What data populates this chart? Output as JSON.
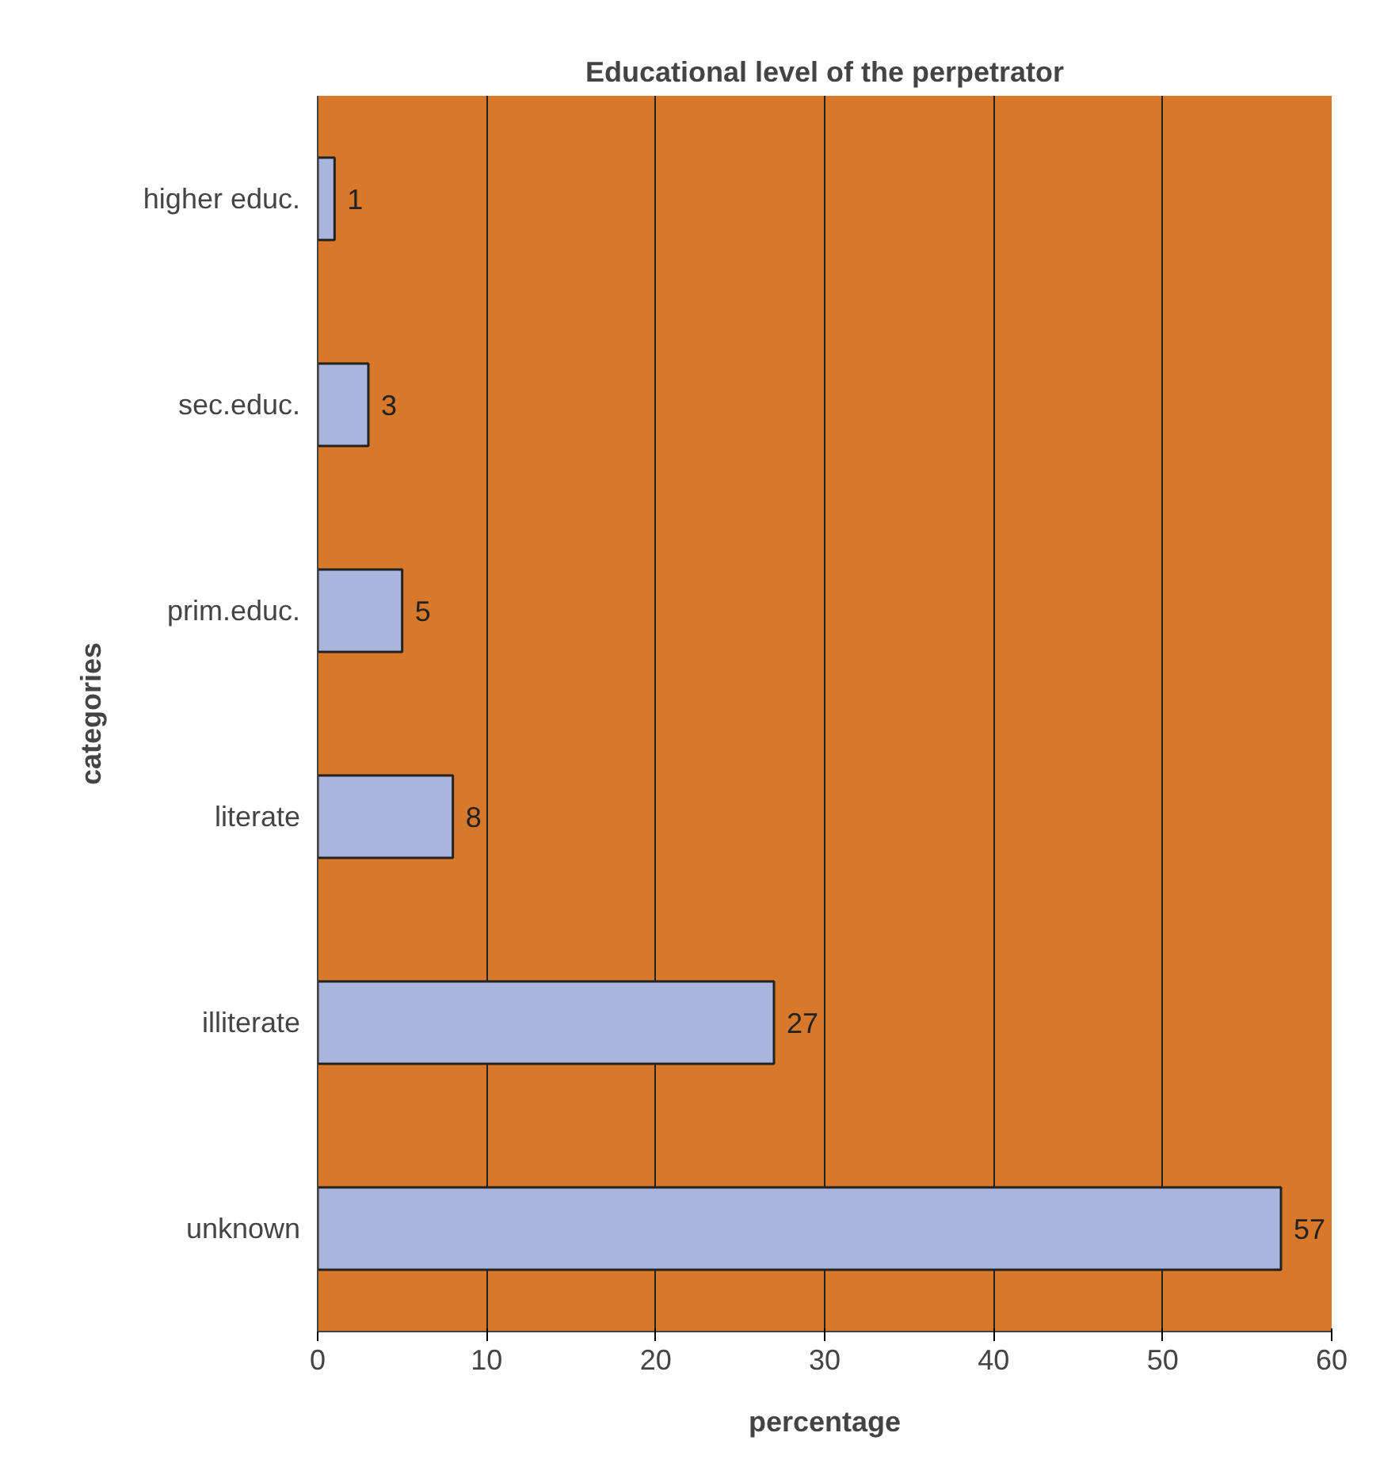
{
  "chart_data": {
    "type": "bar",
    "orientation": "horizontal",
    "title": "Educational level of the perpetrator",
    "xlabel": "percentage",
    "ylabel": "categories",
    "categories": [
      "higher educ.",
      "sec.educ.",
      "prim.educ.",
      "literate",
      "illiterate",
      "unknown"
    ],
    "values": [
      1,
      3,
      5,
      8,
      27,
      57
    ],
    "color": "#aab4dc",
    "data_labels": true,
    "xlim": [
      0,
      60
    ],
    "xticks": [
      0,
      10,
      20,
      30,
      40,
      50,
      60
    ],
    "grid": "x"
  }
}
